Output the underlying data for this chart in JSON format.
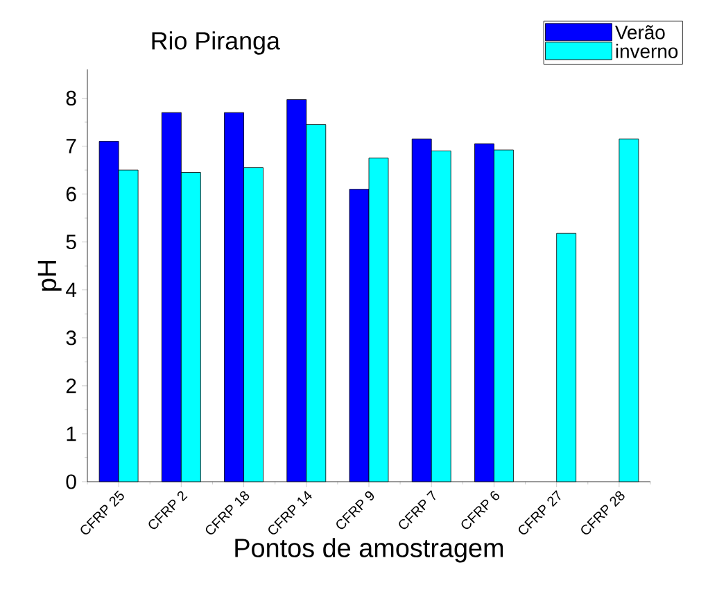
{
  "chart_data": {
    "type": "bar",
    "title": "Rio Piranga",
    "xlabel": "Pontos de amostragem",
    "ylabel": "pH",
    "categories": [
      "CFRP 25",
      "CFRP 2",
      "CFRP 18",
      "CFRP 14",
      "CFRP 9",
      "CFRP 7",
      "CFRP 6",
      "CFRP 27",
      "CFRP 28"
    ],
    "series": [
      {
        "name": "Verão",
        "color": "#0000ff",
        "values": [
          7.1,
          7.7,
          7.7,
          7.97,
          6.1,
          7.15,
          7.05,
          null,
          null
        ]
      },
      {
        "name": "inverno",
        "color": "#00ffff",
        "values": [
          6.5,
          6.45,
          6.55,
          7.45,
          6.75,
          6.9,
          6.92,
          5.18,
          7.15
        ]
      }
    ],
    "ylim": [
      0,
      8.6
    ],
    "yticks": [
      0,
      1,
      2,
      3,
      4,
      5,
      6,
      7,
      8
    ],
    "legend": "top right"
  }
}
